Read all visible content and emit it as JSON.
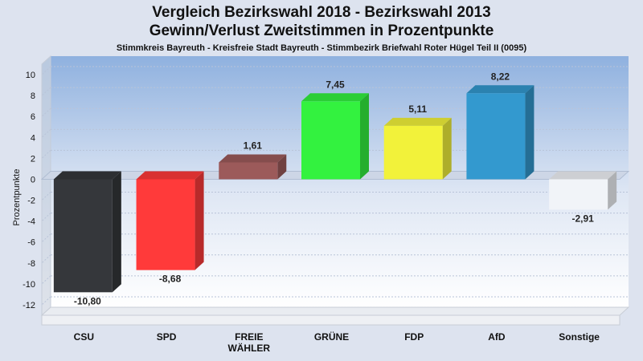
{
  "chart_data": {
    "type": "bar",
    "title": "Vergleich Bezirkswahl 2018 - Bezirkswahl 2013",
    "subtitle": "Gewinn/Verlust Zweitstimmen in Prozentpunkte",
    "caption": "Stimmkreis Bayreuth - Kreisfreie Stadt Bayreuth - Stimmbezirk Briefwahl Roter Hügel Teil II (0095)",
    "ylabel": "Prozentpunkte",
    "ylim": [
      -13,
      11
    ],
    "yticks": [
      10,
      8,
      6,
      4,
      2,
      0,
      -2,
      -4,
      -6,
      -8,
      -10,
      -12
    ],
    "grid": true,
    "categories": [
      [
        "CSU"
      ],
      [
        "SPD"
      ],
      [
        "FREIE",
        "WÄHLER"
      ],
      [
        "GRÜNE"
      ],
      [
        "FDP"
      ],
      [
        "AfD"
      ],
      [
        "Sonstige"
      ]
    ],
    "values": [
      -10.8,
      -8.68,
      1.61,
      7.45,
      5.11,
      8.22,
      -2.91
    ],
    "value_labels": [
      "-10,80",
      "-8,68",
      "1,61",
      "7,45",
      "5,11",
      "8,22",
      "-2,91"
    ],
    "colors": [
      "#35373b",
      "#ff3a3a",
      "#9c5a5a",
      "#33f23f",
      "#f2f23a",
      "#3399cf",
      "#f1f4f8"
    ]
  }
}
